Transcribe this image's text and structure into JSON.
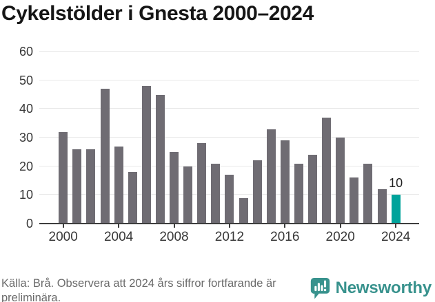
{
  "title": "Cykelstölder i Gnesta 2000–2024",
  "chart_data": {
    "type": "bar",
    "title": "Cykelstölder i Gnesta 2000–2024",
    "x": [
      2000,
      2001,
      2002,
      2003,
      2004,
      2005,
      2006,
      2007,
      2008,
      2009,
      2010,
      2011,
      2012,
      2013,
      2014,
      2015,
      2016,
      2017,
      2018,
      2019,
      2020,
      2021,
      2022,
      2023,
      2024
    ],
    "values": [
      32,
      26,
      26,
      47,
      27,
      18,
      48,
      45,
      25,
      20,
      28,
      21,
      17,
      9,
      22,
      33,
      29,
      21,
      24,
      37,
      30,
      16,
      21,
      12,
      10
    ],
    "xlabel": "",
    "ylabel": "",
    "ylim": [
      0,
      60
    ],
    "yticks": [
      0,
      10,
      20,
      30,
      40,
      50,
      60
    ],
    "xticks": [
      2000,
      2004,
      2008,
      2012,
      2016,
      2020,
      2024
    ],
    "grid": "horizontal",
    "legend": "none",
    "bar_color": "#6f6c73",
    "highlight_color": "#00a39b",
    "highlight_index": 24,
    "annotation": {
      "index": 24,
      "text": "10"
    }
  },
  "footer": {
    "source_text": "Källa: Brå. Observera att 2024 års siffror fortfarande är preliminära."
  },
  "branding": {
    "logo_text": "Newsworthy",
    "logo_icon": "bar-chart-speech-bubble-icon",
    "logo_color": "#38928d"
  }
}
